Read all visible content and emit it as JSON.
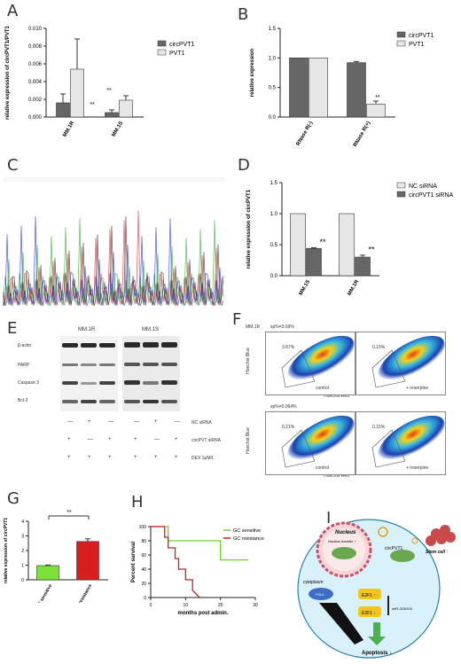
{
  "panels": {
    "A": {
      "label": "A"
    },
    "B": {
      "label": "B"
    },
    "C": {
      "label": "C"
    },
    "D": {
      "label": "D"
    },
    "E": {
      "label": "E",
      "cell_lines": [
        "MM.1R",
        "MM.1S"
      ],
      "proteins": [
        "β-actin",
        "PARP",
        "Caspase 3",
        "Bcl-2"
      ],
      "rows": [
        {
          "name": "NC siRNA",
          "signs": [
            "—",
            "+",
            "—",
            "—",
            "+",
            "—"
          ]
        },
        {
          "name": "circPVT siRNA",
          "signs": [
            "+",
            "—",
            "+",
            "+",
            "—",
            "+"
          ]
        },
        {
          "name": "DEX 1μM/L",
          "signs": [
            "+",
            "+",
            "+",
            "+",
            "+",
            "+"
          ]
        }
      ]
    },
    "F": {
      "label": "F",
      "cell_line": "MM.1R",
      "top_sp": "sp%=3.69%",
      "bottom_sp": "sp%=0.064%",
      "ylabel": "Hoechst Blue",
      "xlabel": "Hoechst Red",
      "control": "control",
      "reserpine": "+ reserpine",
      "gate_top_left": "3.87%",
      "gate_top_right": "0.15%",
      "gate_bottom_left": "0.21%",
      "gate_bottom_right": "0.15%"
    },
    "G": {
      "label": "G"
    },
    "H": {
      "label": "H"
    },
    "I": {
      "label": "I",
      "nucleus": "Nucleus",
      "nuclear_transfer": "Nuclear transfer ↑",
      "cytoplasm": "cytoplasm",
      "circpvt1": "circPVT1",
      "pi3k": "PI3-k",
      "e2f1a": "E2F1 ↑",
      "e2f1b": "E2F1 ↑",
      "mir": "miR-203/204",
      "apoptosis": "Apoptosis ↓",
      "stem": "Stem cell ↑"
    }
  },
  "chart_data": [
    {
      "panel": "A",
      "type": "bar",
      "categories": [
        "MM.1R",
        "MM.1S"
      ],
      "series": [
        {
          "name": "circPVT1",
          "values": [
            0.0016,
            0.0005
          ],
          "errors": [
            0.001,
            0.0003
          ],
          "color": "#666666"
        },
        {
          "name": "PVT1",
          "values": [
            0.0054,
            0.0019
          ],
          "errors": [
            0.0034,
            0.0005
          ],
          "color": "#e6e6e6"
        }
      ],
      "ylabel": "relative expression of circPVT1/PVT1",
      "ylim": [
        0,
        0.01
      ],
      "yticks": [
        "0.000",
        "0.002",
        "0.004",
        "0.006",
        "0.008",
        "0.010"
      ],
      "annotations": [
        "**",
        "**"
      ],
      "legend": "top-right"
    },
    {
      "panel": "B",
      "type": "bar",
      "categories": [
        "RNase R(-)",
        "RNase R(+)"
      ],
      "series": [
        {
          "name": "circPVT1",
          "values": [
            1.0,
            0.92
          ],
          "errors": [
            0,
            0.02
          ],
          "color": "#666666"
        },
        {
          "name": "PVT1",
          "values": [
            1.0,
            0.22
          ],
          "errors": [
            0,
            0.05
          ],
          "color": "#e6e6e6"
        }
      ],
      "ylabel": "relative expression",
      "ylim": [
        0,
        1.5
      ],
      "yticks": [
        "0.0",
        "0.5",
        "1.0",
        "1.5"
      ],
      "annotations": [
        "**"
      ],
      "legend": "top-right"
    },
    {
      "panel": "C",
      "type": "line",
      "description": "sequencing chromatogram"
    },
    {
      "panel": "D",
      "type": "bar",
      "categories": [
        "MM.1S",
        "MM.1R"
      ],
      "series": [
        {
          "name": "NC siRNA",
          "values": [
            1.0,
            1.0
          ],
          "errors": [
            0,
            0
          ],
          "color": "#e6e6e6"
        },
        {
          "name": "circPVT1 siRNA",
          "values": [
            0.44,
            0.3
          ],
          "errors": [
            0.01,
            0.03
          ],
          "color": "#666666"
        }
      ],
      "ylabel": "relative expression of circPVT1",
      "ylim": [
        0,
        1.5
      ],
      "yticks": [
        "0.0",
        "0.5",
        "1.0",
        "1.5"
      ],
      "annotations": [
        "**",
        "**"
      ],
      "legend": "top-right"
    },
    {
      "panel": "G",
      "type": "bar",
      "categories": [
        "GC sensitive",
        "GC resistance"
      ],
      "values": [
        0.97,
        2.62
      ],
      "errors": [
        0.04,
        0.18
      ],
      "colors": [
        "#7ee03a",
        "#d81e1e"
      ],
      "ylabel": "relative expression of circPVT1",
      "ylim": [
        0,
        4
      ],
      "yticks": [
        "0",
        "1",
        "2",
        "3",
        "4"
      ],
      "annotations": [
        "**"
      ]
    },
    {
      "panel": "H",
      "type": "line",
      "series": [
        {
          "name": "GC sensitive",
          "x": [
            0,
            5,
            5,
            9,
            20,
            20,
            28
          ],
          "y": [
            100,
            100,
            80,
            80,
            80,
            53,
            53
          ],
          "color": "#6bd32a"
        },
        {
          "name": "GC resistance",
          "x": [
            0,
            4,
            4,
            5,
            5,
            7,
            7,
            8,
            8,
            10,
            10,
            12,
            12,
            14
          ],
          "y": [
            100,
            100,
            85,
            85,
            70,
            70,
            55,
            55,
            40,
            40,
            25,
            25,
            10,
            0
          ],
          "color": "#cc1f1f"
        }
      ],
      "xlabel": "months post admin.",
      "ylabel": "Percent survival",
      "xlim": [
        0,
        30
      ],
      "ylim": [
        0,
        100
      ],
      "xticks": [
        "0",
        "10",
        "20",
        "30"
      ],
      "yticks": [
        "0",
        "20",
        "40",
        "60",
        "80",
        "100"
      ],
      "legend": "top-right"
    }
  ]
}
